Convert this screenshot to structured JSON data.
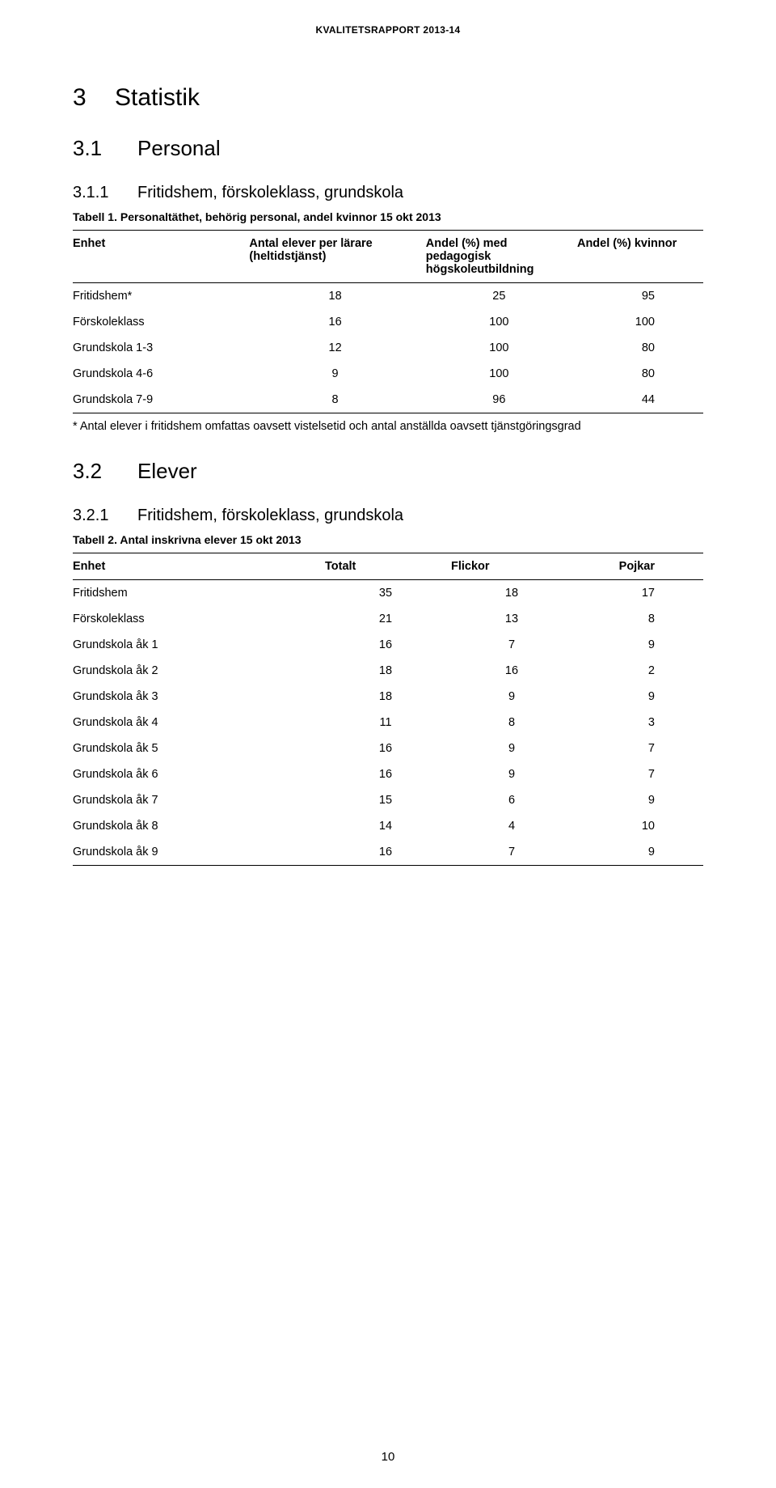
{
  "running_header": "KVALITETSRAPPORT 2013-14",
  "section3": {
    "num": "3",
    "title": "Statistik"
  },
  "section31": {
    "num": "3.1",
    "title": "Personal"
  },
  "section311": {
    "num": "3.1.1",
    "title": "Fritidshem, förskoleklass, grundskola"
  },
  "table1": {
    "caption": "Tabell 1. Personaltäthet, behörig personal, andel kvinnor 15 okt 2013",
    "headers": {
      "c1": "Enhet",
      "c2": "Antal elever per lärare (heltidstjänst)",
      "c3": "Andel (%) med pedagogisk högskoleutbildning",
      "c4": "Andel (%) kvinnor"
    },
    "rows": [
      {
        "c1": "Fritidshem*",
        "c2": "18",
        "c3": "25",
        "c4": "95"
      },
      {
        "c1": "Förskoleklass",
        "c2": "16",
        "c3": "100",
        "c4": "100"
      },
      {
        "c1": "Grundskola 1-3",
        "c2": "12",
        "c3": "100",
        "c4": "80"
      },
      {
        "c1": "Grundskola 4-6",
        "c2": "9",
        "c3": "100",
        "c4": "80"
      },
      {
        "c1": "Grundskola 7-9",
        "c2": "8",
        "c3": "96",
        "c4": "44"
      }
    ]
  },
  "table1_footnote": "* Antal elever i fritidshem omfattas oavsett vistelsetid och antal anställda oavsett tjänstgöringsgrad",
  "section32": {
    "num": "3.2",
    "title": "Elever"
  },
  "section321": {
    "num": "3.2.1",
    "title": "Fritidshem, förskoleklass, grundskola"
  },
  "table2": {
    "caption": "Tabell 2. Antal inskrivna elever 15 okt 2013",
    "headers": {
      "c1": "Enhet",
      "c2": "Totalt",
      "c3": "Flickor",
      "c4": "Pojkar"
    },
    "rows": [
      {
        "c1": "Fritidshem",
        "c2": "35",
        "c3": "18",
        "c4": "17"
      },
      {
        "c1": "Förskoleklass",
        "c2": "21",
        "c3": "13",
        "c4": "8"
      },
      {
        "c1": "Grundskola åk 1",
        "c2": "16",
        "c3": "7",
        "c4": "9"
      },
      {
        "c1": "Grundskola åk 2",
        "c2": "18",
        "c3": "16",
        "c4": "2"
      },
      {
        "c1": "Grundskola åk 3",
        "c2": "18",
        "c3": "9",
        "c4": "9"
      },
      {
        "c1": "Grundskola åk 4",
        "c2": "11",
        "c3": "8",
        "c4": "3"
      },
      {
        "c1": "Grundskola åk 5",
        "c2": "16",
        "c3": "9",
        "c4": "7"
      },
      {
        "c1": "Grundskola åk 6",
        "c2": "16",
        "c3": "9",
        "c4": "7"
      },
      {
        "c1": "Grundskola åk 7",
        "c2": "15",
        "c3": "6",
        "c4": "9"
      },
      {
        "c1": "Grundskola åk 8",
        "c2": "14",
        "c3": "4",
        "c4": "10"
      },
      {
        "c1": "Grundskola åk 9",
        "c2": "16",
        "c3": "7",
        "c4": "9"
      }
    ]
  },
  "page_number": "10"
}
